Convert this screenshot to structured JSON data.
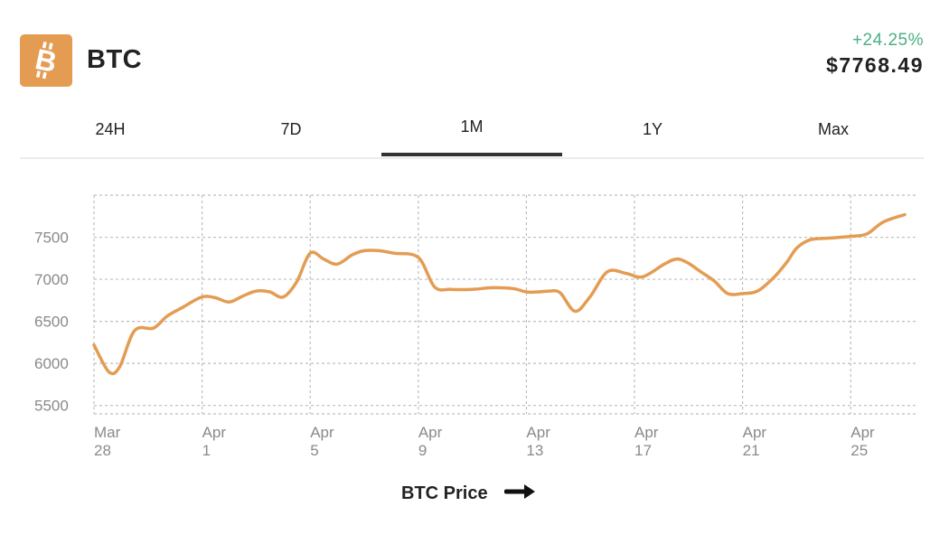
{
  "coin": {
    "symbol": "BTC",
    "logo_icon": "bitcoin-icon",
    "logo_color": "#e49c53"
  },
  "price": {
    "change": "+24.25%",
    "change_color": "#4caf82",
    "value": "$7768.49"
  },
  "tabs": [
    {
      "label": "24H",
      "active": false
    },
    {
      "label": "7D",
      "active": false
    },
    {
      "label": "1M",
      "active": true
    },
    {
      "label": "1Y",
      "active": false
    },
    {
      "label": "Max",
      "active": false
    }
  ],
  "chart_data": {
    "type": "line",
    "series_color": "#e49c53",
    "grid": true,
    "ylim": [
      5400,
      8000
    ],
    "y_ticks": [
      5500,
      6000,
      6500,
      7000,
      7500
    ],
    "xlim": [
      0,
      30.4
    ],
    "x_ticks": [
      {
        "x": 0,
        "month": "Mar",
        "day": "28"
      },
      {
        "x": 4,
        "month": "Apr",
        "day": "1"
      },
      {
        "x": 8,
        "month": "Apr",
        "day": "5"
      },
      {
        "x": 12,
        "month": "Apr",
        "day": "9"
      },
      {
        "x": 16,
        "month": "Apr",
        "day": "13"
      },
      {
        "x": 20,
        "month": "Apr",
        "day": "17"
      },
      {
        "x": 24,
        "month": "Apr",
        "day": "21"
      },
      {
        "x": 28,
        "month": "Apr",
        "day": "25"
      }
    ],
    "x": [
      0,
      0.55,
      0.95,
      1.5,
      2.2,
      2.7,
      3.3,
      4.0,
      4.5,
      5.0,
      5.5,
      6.0,
      6.5,
      7.0,
      7.5,
      8.0,
      8.5,
      9.0,
      9.55,
      10.0,
      10.55,
      11.1,
      12.0,
      12.6,
      13.2,
      14.0,
      14.75,
      15.5,
      16.0,
      16.45,
      16.85,
      17.25,
      17.8,
      18.35,
      19.0,
      19.7,
      20.3,
      21.1,
      21.55,
      21.95,
      22.45,
      22.95,
      23.45,
      24.0,
      24.55,
      25.15,
      25.65,
      26.0,
      26.5,
      27.2,
      28.0,
      28.6,
      29.2,
      30.0
    ],
    "y": [
      6220,
      5900,
      5960,
      6390,
      6420,
      6560,
      6670,
      6790,
      6780,
      6730,
      6800,
      6860,
      6850,
      6790,
      6970,
      7310,
      7240,
      7180,
      7290,
      7340,
      7340,
      7310,
      7260,
      6910,
      6880,
      6880,
      6900,
      6890,
      6850,
      6850,
      6860,
      6840,
      6620,
      6790,
      7090,
      7070,
      7030,
      7180,
      7240,
      7200,
      7090,
      6980,
      6830,
      6830,
      6860,
      7020,
      7210,
      7370,
      7470,
      7490,
      7510,
      7540,
      7680,
      7768.49
    ]
  },
  "footer": {
    "label": "BTC Price",
    "arrow_icon": "arrow-right-icon"
  }
}
